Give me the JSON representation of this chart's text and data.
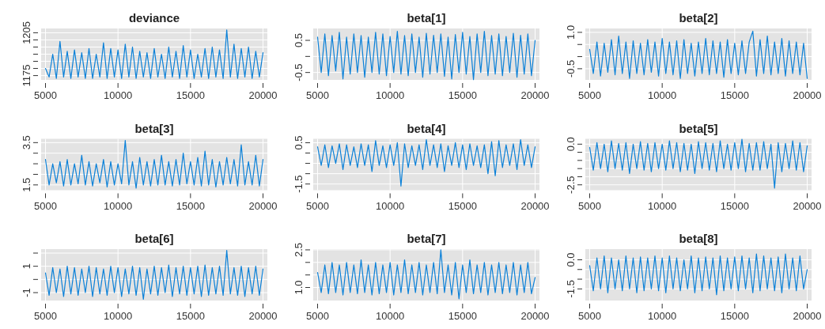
{
  "chart_data": [
    {
      "type": "line",
      "title": "deviance",
      "grid": true,
      "xlim": [
        4700,
        20300
      ],
      "xticks": [
        5000,
        10000,
        15000,
        20000
      ],
      "ylim": [
        1172,
        1208
      ],
      "yticks": [
        1175,
        {
          "value": 1180,
          "label": null
        },
        {
          "value": 1185,
          "label": null
        },
        {
          "value": 1190,
          "label": null
        },
        {
          "value": 1195,
          "label": null
        },
        {
          "value": 1200,
          "label": null
        },
        1205
      ],
      "x": [
        5000,
        5250,
        5500,
        5750,
        6000,
        6250,
        6500,
        6750,
        7000,
        7250,
        7500,
        7750,
        8000,
        8250,
        8500,
        8750,
        9000,
        9250,
        9500,
        9750,
        10000,
        10250,
        10500,
        10750,
        11000,
        11250,
        11500,
        11750,
        12000,
        12250,
        12500,
        12750,
        13000,
        13250,
        13500,
        13750,
        14000,
        14250,
        14500,
        14750,
        15000,
        15250,
        15500,
        15750,
        16000,
        16250,
        16500,
        16750,
        17000,
        17250,
        17500,
        17750,
        18000,
        18250,
        18500,
        18750,
        19000,
        19250,
        19500,
        19750,
        20000
      ],
      "series": [
        {
          "color": "#0a80d8",
          "values": [
            1180,
            1174,
            1190,
            1173,
            1199,
            1174,
            1192,
            1173,
            1193,
            1174,
            1191,
            1173,
            1194,
            1173,
            1190,
            1174,
            1198,
            1173,
            1194,
            1174,
            1193,
            1173,
            1197,
            1174,
            1195,
            1173,
            1192,
            1174,
            1191,
            1173,
            1194,
            1174,
            1190,
            1173,
            1195,
            1174,
            1192,
            1173,
            1196,
            1174,
            1193,
            1173,
            1190,
            1174,
            1194,
            1173,
            1195,
            1174,
            1193,
            1173,
            1207,
            1174,
            1197,
            1173,
            1194,
            1174,
            1195,
            1173,
            1192,
            1174,
            1191
          ]
        }
      ]
    },
    {
      "type": "line",
      "title": "beta[1]",
      "grid": true,
      "xlim": [
        4700,
        20300
      ],
      "xticks": [
        5000,
        10000,
        15000,
        20000
      ],
      "ylim": [
        -0.73,
        0.87
      ],
      "yticks": [
        -0.5,
        {
          "value": 0,
          "label": null
        },
        0.5
      ],
      "x": [
        5000,
        5250,
        5500,
        5750,
        6000,
        6250,
        6500,
        6750,
        7000,
        7250,
        7500,
        7750,
        8000,
        8250,
        8500,
        8750,
        9000,
        9250,
        9500,
        9750,
        10000,
        10250,
        10500,
        10750,
        11000,
        11250,
        11500,
        11750,
        12000,
        12250,
        12500,
        12750,
        13000,
        13250,
        13500,
        13750,
        14000,
        14250,
        14500,
        14750,
        15000,
        15250,
        15500,
        15750,
        16000,
        16250,
        16500,
        16750,
        17000,
        17250,
        17500,
        17750,
        18000,
        18250,
        18500,
        18750,
        19000,
        19250,
        19500,
        19750,
        20000
      ],
      "series": [
        {
          "color": "#0a80d8",
          "values": [
            0.6,
            -0.5,
            0.7,
            -0.6,
            0.65,
            -0.45,
            0.75,
            -0.7,
            0.6,
            -0.55,
            0.7,
            -0.5,
            0.65,
            -0.65,
            0.6,
            -0.5,
            0.75,
            -0.55,
            0.7,
            -0.6,
            0.62,
            -0.5,
            0.78,
            -0.55,
            0.65,
            -0.6,
            0.7,
            -0.5,
            0.6,
            -0.65,
            0.72,
            -0.55,
            0.66,
            -0.5,
            0.7,
            -0.62,
            0.6,
            -0.7,
            0.68,
            -0.5,
            0.75,
            -0.55,
            0.62,
            -0.72,
            0.7,
            -0.5,
            0.78,
            -0.6,
            0.65,
            -0.55,
            0.7,
            -0.6,
            0.62,
            -0.5,
            0.72,
            -0.65,
            0.66,
            -0.55,
            0.7,
            -0.6,
            0.5
          ]
        }
      ]
    },
    {
      "type": "line",
      "title": "beta[2]",
      "grid": true,
      "xlim": [
        4700,
        20300
      ],
      "xticks": [
        5000,
        10000,
        15000,
        20000
      ],
      "ylim": [
        -0.96,
        1.16
      ],
      "yticks": [
        -0.5,
        {
          "value": 0,
          "label": null
        },
        {
          "value": 0.5,
          "label": null
        },
        {
          "value": 1,
          "label": "1.0"
        }
      ],
      "x": [
        5000,
        5250,
        5500,
        5750,
        6000,
        6250,
        6500,
        6750,
        7000,
        7250,
        7500,
        7750,
        8000,
        8250,
        8500,
        8750,
        9000,
        9250,
        9500,
        9750,
        10000,
        10250,
        10500,
        10750,
        11000,
        11250,
        11500,
        11750,
        12000,
        12250,
        12500,
        12750,
        13000,
        13250,
        13500,
        13750,
        14000,
        14250,
        14500,
        14750,
        15000,
        15250,
        15500,
        15750,
        16000,
        16250,
        16500,
        16750,
        17000,
        17250,
        17500,
        17750,
        18000,
        18250,
        18500,
        18750,
        19000,
        19250,
        19500,
        19750,
        20000
      ],
      "series": [
        {
          "color": "#0a80d8",
          "values": [
            0.3,
            -0.7,
            0.6,
            -0.8,
            0.55,
            -0.65,
            0.7,
            -0.75,
            0.85,
            -0.7,
            0.6,
            -0.9,
            0.65,
            -0.7,
            0.55,
            -0.75,
            0.7,
            -0.65,
            0.6,
            -0.8,
            0.75,
            -0.7,
            0.6,
            -0.75,
            0.65,
            -0.9,
            0.7,
            -0.7,
            0.55,
            -0.8,
            0.6,
            -0.7,
            0.75,
            -0.75,
            0.65,
            -0.7,
            0.6,
            -0.85,
            0.7,
            -0.7,
            0.55,
            -0.75,
            0.65,
            -0.7,
            0.6,
            1.05,
            -0.8,
            0.7,
            -0.7,
            0.85,
            -0.75,
            0.6,
            -0.7,
            0.75,
            -0.8,
            0.65,
            -0.7,
            0.6,
            -0.75,
            0.55,
            -0.9
          ]
        }
      ]
    },
    {
      "type": "line",
      "title": "beta[3]",
      "grid": true,
      "xlim": [
        4700,
        20300
      ],
      "xticks": [
        5000,
        10000,
        15000,
        20000
      ],
      "ylim": [
        1.25,
        3.68
      ],
      "yticks": [
        1.5,
        {
          "value": 2,
          "label": null
        },
        {
          "value": 2.5,
          "label": null
        },
        {
          "value": 3,
          "label": null
        },
        3.5
      ],
      "x": [
        5000,
        5250,
        5500,
        5750,
        6000,
        6250,
        6500,
        6750,
        7000,
        7250,
        7500,
        7750,
        8000,
        8250,
        8500,
        8750,
        9000,
        9250,
        9500,
        9750,
        10000,
        10250,
        10500,
        10750,
        11000,
        11250,
        11500,
        11750,
        12000,
        12250,
        12500,
        12750,
        13000,
        13250,
        13500,
        13750,
        14000,
        14250,
        14500,
        14750,
        15000,
        15250,
        15500,
        15750,
        16000,
        16250,
        16500,
        16750,
        17000,
        17250,
        17500,
        17750,
        18000,
        18250,
        18500,
        18750,
        19000,
        19250,
        19500,
        19750,
        20000
      ],
      "series": [
        {
          "color": "#0a80d8",
          "values": [
            2.7,
            1.5,
            2.5,
            1.6,
            2.6,
            1.45,
            2.7,
            1.5,
            2.5,
            1.55,
            2.9,
            1.5,
            2.6,
            1.45,
            2.5,
            1.6,
            2.7,
            1.4,
            2.6,
            1.5,
            2.5,
            1.55,
            3.6,
            1.5,
            2.6,
            1.35,
            2.8,
            1.5,
            2.6,
            1.45,
            2.7,
            1.5,
            2.9,
            1.5,
            2.6,
            1.45,
            2.7,
            1.5,
            3.0,
            1.55,
            2.6,
            1.5,
            2.8,
            1.45,
            3.1,
            1.5,
            2.7,
            1.4,
            2.6,
            1.5,
            2.8,
            1.55,
            2.7,
            1.45,
            3.4,
            1.5,
            2.6,
            1.5,
            2.9,
            1.45,
            2.7
          ]
        }
      ]
    },
    {
      "type": "line",
      "title": "beta[4]",
      "grid": true,
      "xlim": [
        4700,
        20300
      ],
      "xticks": [
        5000,
        10000,
        15000,
        20000
      ],
      "ylim": [
        -1.8,
        0.69
      ],
      "yticks": [
        -1.5,
        {
          "value": -1,
          "label": null
        },
        {
          "value": -0.5,
          "label": null
        },
        {
          "value": 0,
          "label": null
        },
        0.5
      ],
      "x": [
        5000,
        5250,
        5500,
        5750,
        6000,
        6250,
        6500,
        6750,
        7000,
        7250,
        7500,
        7750,
        8000,
        8250,
        8500,
        8750,
        9000,
        9250,
        9500,
        9750,
        10000,
        10250,
        10500,
        10750,
        11000,
        11250,
        11500,
        11750,
        12000,
        12250,
        12500,
        12750,
        13000,
        13250,
        13500,
        13750,
        14000,
        14250,
        14500,
        14750,
        15000,
        15250,
        15500,
        15750,
        16000,
        16250,
        16500,
        16750,
        17000,
        17250,
        17500,
        17750,
        18000,
        18250,
        18500,
        18750,
        19000,
        19250,
        19500,
        19750,
        20000
      ],
      "series": [
        {
          "color": "#0a80d8",
          "values": [
            0.3,
            -0.6,
            0.4,
            -0.7,
            0.35,
            -0.5,
            0.45,
            -0.8,
            0.4,
            -0.6,
            0.3,
            -0.7,
            0.45,
            -0.6,
            0.4,
            -0.9,
            0.6,
            -0.6,
            0.35,
            -0.7,
            0.4,
            -0.6,
            0.5,
            -1.6,
            0.45,
            -0.7,
            0.35,
            -0.6,
            0.4,
            -0.8,
            0.65,
            -0.6,
            0.4,
            -0.7,
            0.45,
            -0.9,
            0.35,
            -0.6,
            0.5,
            -0.7,
            0.4,
            -0.8,
            0.45,
            -0.6,
            0.35,
            -0.7,
            0.4,
            -1.0,
            0.55,
            -1.1,
            0.6,
            -0.7,
            0.4,
            -0.6,
            0.45,
            -0.8,
            0.65,
            -0.6,
            0.4,
            -0.7,
            0.3
          ]
        }
      ]
    },
    {
      "type": "line",
      "title": "beta[5]",
      "grid": true,
      "xlim": [
        4700,
        20300
      ],
      "xticks": [
        5000,
        10000,
        15000,
        20000
      ],
      "ylim": [
        -2.83,
        0.33
      ],
      "yticks": [
        -2.5,
        {
          "value": -2,
          "label": null
        },
        {
          "value": -1.5,
          "label": null
        },
        {
          "value": -1,
          "label": null
        },
        {
          "value": -0.5,
          "label": null
        },
        {
          "value": 0,
          "label": "0.0"
        }
      ],
      "x": [
        5000,
        5250,
        5500,
        5750,
        6000,
        6250,
        6500,
        6750,
        7000,
        7250,
        7500,
        7750,
        8000,
        8250,
        8500,
        8750,
        9000,
        9250,
        9500,
        9750,
        10000,
        10250,
        10500,
        10750,
        11000,
        11250,
        11500,
        11750,
        12000,
        12250,
        12500,
        12750,
        13000,
        13250,
        13500,
        13750,
        14000,
        14250,
        14500,
        14750,
        15000,
        15250,
        15500,
        15750,
        16000,
        16250,
        16500,
        16750,
        17000,
        17250,
        17500,
        17750,
        18000,
        18250,
        18500,
        18750,
        19000,
        19250,
        19500,
        19750,
        20000
      ],
      "series": [
        {
          "color": "#0a80d8",
          "values": [
            -0.2,
            -1.6,
            0.1,
            -1.5,
            0.0,
            -1.7,
            0.2,
            -1.5,
            0.05,
            -1.6,
            0.1,
            -1.8,
            0.0,
            -1.5,
            0.15,
            -1.6,
            0.05,
            -1.7,
            0.1,
            -1.5,
            0.0,
            -1.6,
            0.2,
            -1.5,
            0.1,
            -1.7,
            0.05,
            -1.6,
            0.0,
            -1.8,
            0.15,
            -1.5,
            0.1,
            -1.6,
            0.05,
            -1.7,
            0.2,
            -1.5,
            0.0,
            -1.6,
            0.1,
            -1.5,
            0.3,
            -1.7,
            0.05,
            -1.6,
            0.1,
            -1.6,
            0.15,
            -1.5,
            0.0,
            -2.7,
            0.1,
            -1.7,
            0.05,
            -1.5,
            0.2,
            -1.6,
            0.1,
            -1.7,
            -0.1
          ]
        }
      ]
    },
    {
      "type": "line",
      "title": "beta[6]",
      "grid": true,
      "xlim": [
        4700,
        20300
      ],
      "xticks": [
        5000,
        10000,
        15000,
        20000
      ],
      "ylim": [
        -1.6,
        2.3
      ],
      "yticks": [
        -1,
        {
          "value": 0,
          "label": null
        },
        1,
        {
          "value": 2,
          "label": null
        }
      ],
      "x": [
        5000,
        5250,
        5500,
        5750,
        6000,
        6250,
        6500,
        6750,
        7000,
        7250,
        7500,
        7750,
        8000,
        8250,
        8500,
        8750,
        9000,
        9250,
        9500,
        9750,
        10000,
        10250,
        10500,
        10750,
        11000,
        11250,
        11500,
        11750,
        12000,
        12250,
        12500,
        12750,
        13000,
        13250,
        13500,
        13750,
        14000,
        14250,
        14500,
        14750,
        15000,
        15250,
        15500,
        15750,
        16000,
        16250,
        16500,
        16750,
        17000,
        17250,
        17500,
        17750,
        18000,
        18250,
        18500,
        18750,
        19000,
        19250,
        19500,
        19750,
        20000
      ],
      "series": [
        {
          "color": "#0a80d8",
          "values": [
            0.5,
            -1.2,
            0.9,
            -1.0,
            0.8,
            -1.3,
            1.0,
            -1.1,
            0.9,
            -1.2,
            0.8,
            -1.0,
            1.0,
            -1.3,
            0.9,
            -1.1,
            0.8,
            -1.2,
            1.0,
            -1.0,
            0.9,
            -1.3,
            0.8,
            -1.1,
            1.0,
            -1.2,
            0.9,
            -1.5,
            0.8,
            -1.1,
            1.0,
            -1.2,
            0.9,
            -1.0,
            1.1,
            -1.3,
            0.9,
            -1.1,
            1.0,
            -1.2,
            0.9,
            -1.1,
            1.0,
            -1.3,
            1.1,
            -1.2,
            0.9,
            -1.1,
            1.0,
            -1.2,
            2.2,
            -1.1,
            0.9,
            -1.2,
            1.0,
            -1.3,
            0.9,
            -1.1,
            1.0,
            -1.2,
            0.8
          ]
        }
      ]
    },
    {
      "type": "line",
      "title": "beta[7]",
      "grid": true,
      "xlim": [
        4700,
        20300
      ],
      "xticks": [
        5000,
        10000,
        15000,
        20000
      ],
      "ylim": [
        0.48,
        2.53
      ],
      "yticks": [
        {
          "value": 1,
          "label": "1.0"
        },
        {
          "value": 1.5,
          "label": null
        },
        {
          "value": 2,
          "label": null
        },
        2.5
      ],
      "x": [
        5000,
        5250,
        5500,
        5750,
        6000,
        6250,
        6500,
        6750,
        7000,
        7250,
        7500,
        7750,
        8000,
        8250,
        8500,
        8750,
        9000,
        9250,
        9500,
        9750,
        10000,
        10250,
        10500,
        10750,
        11000,
        11250,
        11500,
        11750,
        12000,
        12250,
        12500,
        12750,
        13000,
        13250,
        13500,
        13750,
        14000,
        14250,
        14500,
        14750,
        15000,
        15250,
        15500,
        15750,
        16000,
        16250,
        16500,
        16750,
        17000,
        17250,
        17500,
        17750,
        18000,
        18250,
        18500,
        18750,
        19000,
        19250,
        19500,
        19750,
        20000
      ],
      "series": [
        {
          "color": "#0a80d8",
          "values": [
            1.6,
            0.8,
            1.9,
            0.75,
            2.0,
            0.8,
            1.9,
            0.7,
            2.0,
            0.8,
            1.9,
            0.75,
            2.1,
            0.8,
            1.9,
            0.7,
            2.0,
            0.75,
            1.9,
            0.8,
            2.0,
            0.7,
            1.9,
            0.8,
            2.1,
            0.75,
            1.9,
            0.8,
            2.0,
            0.7,
            1.9,
            0.8,
            2.0,
            0.75,
            2.5,
            0.8,
            1.9,
            0.7,
            2.0,
            0.55,
            1.9,
            0.8,
            2.1,
            0.75,
            1.9,
            0.8,
            2.0,
            0.7,
            1.9,
            0.8,
            2.0,
            0.75,
            1.9,
            0.8,
            2.0,
            0.7,
            1.9,
            0.8,
            2.0,
            0.75,
            1.4
          ]
        }
      ]
    },
    {
      "type": "line",
      "title": "beta[8]",
      "grid": true,
      "xlim": [
        4700,
        20300
      ],
      "xticks": [
        5000,
        10000,
        15000,
        20000
      ],
      "ylim": [
        -2.1,
        0.55
      ],
      "yticks": [
        -1.5,
        {
          "value": -1,
          "label": null
        },
        {
          "value": -0.5,
          "label": null
        },
        {
          "value": 0,
          "label": "0.0"
        }
      ],
      "x": [
        5000,
        5250,
        5500,
        5750,
        6000,
        6250,
        6500,
        6750,
        7000,
        7250,
        7500,
        7750,
        8000,
        8250,
        8500,
        8750,
        9000,
        9250,
        9500,
        9750,
        10000,
        10250,
        10500,
        10750,
        11000,
        11250,
        11500,
        11750,
        12000,
        12250,
        12500,
        12750,
        13000,
        13250,
        13500,
        13750,
        14000,
        14250,
        14500,
        14750,
        15000,
        15250,
        15500,
        15750,
        16000,
        16250,
        16500,
        16750,
        17000,
        17250,
        17500,
        17750,
        18000,
        18250,
        18500,
        18750,
        19000,
        19250,
        19500,
        19750,
        20000
      ],
      "series": [
        {
          "color": "#0a80d8",
          "values": [
            -0.3,
            -1.6,
            0.1,
            -1.5,
            0.2,
            -1.7,
            0.1,
            -1.5,
            0.0,
            -1.6,
            0.2,
            -1.5,
            0.1,
            -1.7,
            0.15,
            -1.6,
            0.1,
            -1.5,
            0.2,
            -1.6,
            0.1,
            -1.7,
            0.2,
            -1.5,
            0.1,
            -1.6,
            0.0,
            -1.5,
            0.2,
            -1.7,
            0.1,
            -1.6,
            0.15,
            -1.5,
            0.1,
            -1.8,
            0.2,
            -1.6,
            0.1,
            -1.5,
            0.15,
            -1.6,
            0.2,
            -1.5,
            0.1,
            -1.7,
            0.3,
            -1.6,
            0.2,
            -1.5,
            0.1,
            -1.6,
            0.15,
            -1.7,
            0.3,
            -1.5,
            0.1,
            -1.6,
            0.2,
            -1.5,
            -0.5
          ]
        }
      ]
    }
  ]
}
